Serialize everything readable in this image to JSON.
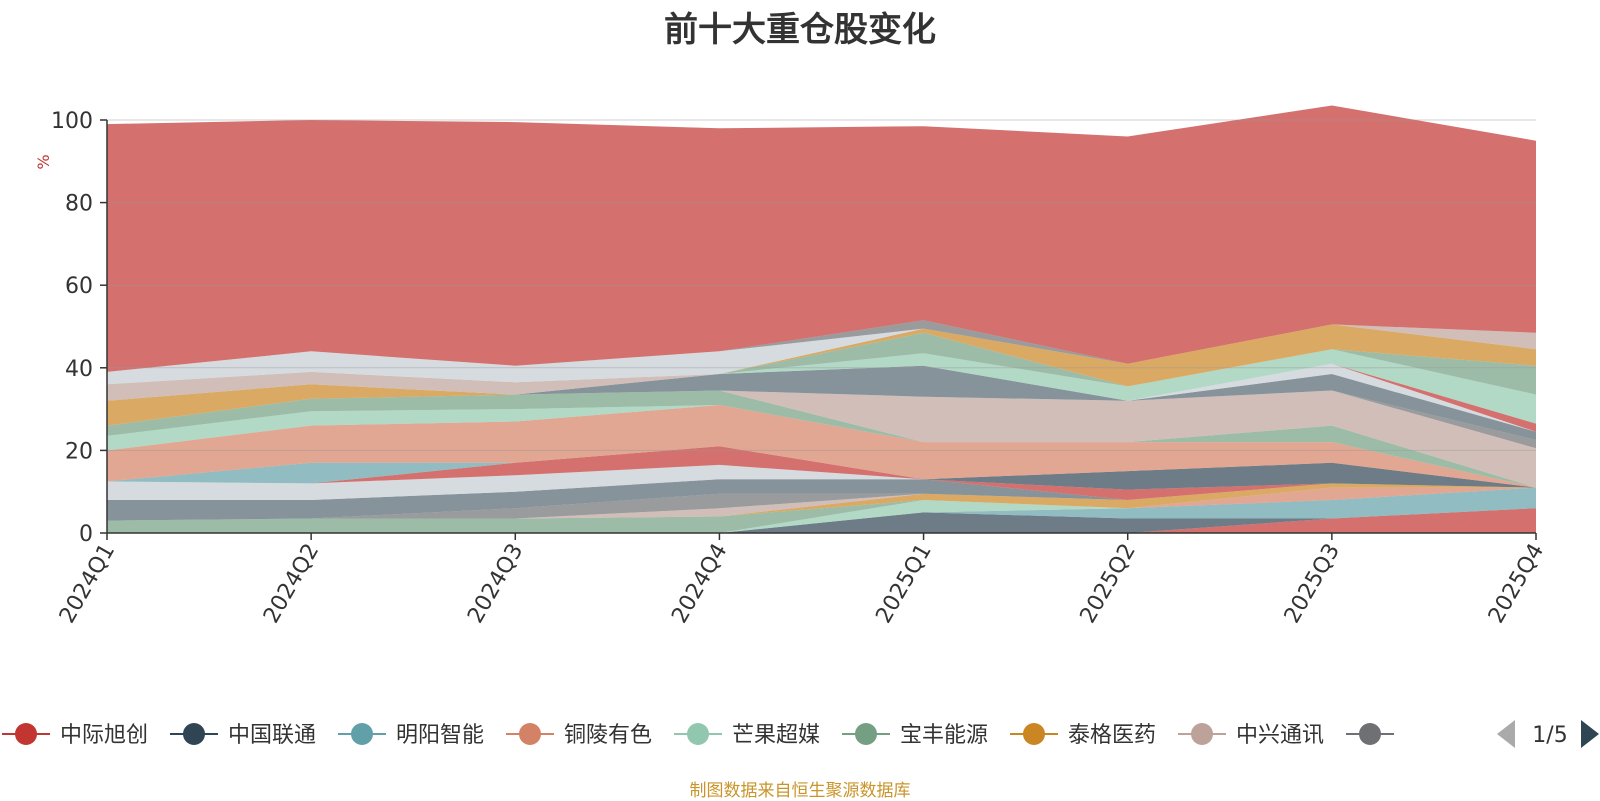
{
  "chart_data": {
    "type": "area",
    "stacked": true,
    "title": "前十大重仓股变化",
    "ylabel": "%",
    "ylim": [
      0,
      100
    ],
    "yticks": [
      0,
      20,
      40,
      60,
      80,
      100
    ],
    "grid": true,
    "x": [
      "2024Q1",
      "2024Q2",
      "2024Q3",
      "2024Q4",
      "2025Q1",
      "2025Q2",
      "2025Q3",
      "2025Q4"
    ],
    "series": [
      {
        "name": "中际旭创",
        "color": "#c23531",
        "values": [
          0,
          0,
          0,
          0,
          0,
          0,
          3.5,
          6
        ]
      },
      {
        "name": "中国联通",
        "color": "#2f4554",
        "values": [
          0,
          0,
          0,
          0,
          5,
          3.5,
          0,
          0
        ]
      },
      {
        "name": "明阳智能",
        "color": "#61a0a8",
        "values": [
          0,
          0,
          0,
          0,
          0,
          2.5,
          4.5,
          5
        ]
      },
      {
        "name": "铜陵有色",
        "color": "#d48265",
        "values": [
          0,
          0,
          0,
          0,
          0,
          0,
          3,
          0
        ]
      },
      {
        "name": "芒果超媒",
        "color": "#91c7ae",
        "values": [
          0,
          0,
          0,
          0,
          3,
          0,
          0,
          0
        ]
      },
      {
        "name": "宝丰能源",
        "color": "#749f83",
        "values": [
          3,
          3.5,
          3.5,
          4,
          0,
          0,
          0,
          0
        ]
      },
      {
        "name": "泰格医药",
        "color": "#ca8622",
        "values": [
          0,
          0,
          0,
          0,
          1.5,
          2,
          1,
          0
        ]
      },
      {
        "name": "中兴通讯",
        "color": "#bda29a",
        "values": [
          0,
          0,
          0,
          2,
          0,
          0,
          0,
          0
        ]
      },
      {
        "name": "",
        "color": "#6e7074",
        "values": [
          0,
          0,
          2.5,
          3.5,
          0,
          0,
          0,
          0
        ]
      },
      {
        "name": "",
        "color": "#546570",
        "values": [
          5,
          4.5,
          4,
          3.5,
          3.5,
          0,
          0,
          0
        ]
      },
      {
        "name": "",
        "color": "#c4ccd3",
        "values": [
          4.5,
          4,
          4,
          3.5,
          0,
          0,
          0,
          0
        ]
      },
      {
        "name": "",
        "color": "#c23531",
        "values": [
          0,
          0,
          3,
          4.5,
          0,
          2.5,
          0,
          0
        ]
      },
      {
        "name": "",
        "color": "#2f4554",
        "values": [
          0,
          0,
          0,
          0,
          0,
          4.5,
          5,
          0
        ]
      },
      {
        "name": "",
        "color": "#61a0a8",
        "values": [
          0,
          5,
          0,
          0,
          0,
          0,
          0,
          0
        ]
      },
      {
        "name": "",
        "color": "#d48265",
        "values": [
          7.5,
          9,
          10,
          10,
          9,
          7,
          5,
          0
        ]
      },
      {
        "name": "",
        "color": "#91c7ae",
        "values": [
          3.5,
          3.5,
          3,
          0,
          0,
          0,
          0,
          0
        ]
      },
      {
        "name": "",
        "color": "#749f83",
        "values": [
          2.5,
          3,
          3.5,
          3.5,
          0,
          0,
          4,
          0
        ]
      },
      {
        "name": "",
        "color": "#ca8622",
        "values": [
          6,
          3.5,
          0,
          0,
          0,
          0,
          0,
          0
        ]
      },
      {
        "name": "",
        "color": "#bda29a",
        "values": [
          0,
          0,
          0,
          0,
          11,
          10,
          8.5,
          9.5
        ]
      },
      {
        "name": "",
        "color": "#6e7074",
        "values": [
          0,
          0,
          0,
          0,
          0,
          0,
          0,
          2
        ]
      },
      {
        "name": "",
        "color": "#546570",
        "values": [
          0,
          0,
          0,
          4,
          7.5,
          0,
          4,
          2
        ]
      },
      {
        "name": "",
        "color": "#c4ccd3",
        "values": [
          0,
          0,
          0,
          0,
          0,
          0,
          2.5,
          0
        ]
      },
      {
        "name": "",
        "color": "#c23531",
        "values": [
          0,
          0,
          0,
          0,
          0,
          0,
          0,
          2
        ]
      },
      {
        "name": "",
        "color": "#91c7ae",
        "values": [
          0,
          0,
          0,
          0,
          3,
          3.5,
          3.5,
          7
        ]
      },
      {
        "name": "",
        "color": "#749f83",
        "values": [
          0,
          0,
          0,
          0,
          5,
          0,
          0,
          7
        ]
      },
      {
        "name": "",
        "color": "#ca8622",
        "values": [
          0,
          0,
          0,
          0,
          1,
          5.5,
          6,
          4
        ]
      },
      {
        "name": "",
        "color": "#bda29a",
        "values": [
          4,
          3,
          3,
          0,
          0,
          0,
          0,
          4
        ]
      },
      {
        "name": "",
        "color": "#c4ccd3",
        "values": [
          3,
          5,
          4,
          5.5,
          0,
          0,
          0,
          0
        ]
      },
      {
        "name": "",
        "color": "#6e7074",
        "values": [
          0,
          0,
          0,
          0,
          2,
          0,
          0,
          0
        ]
      },
      {
        "name": "",
        "color": "#c23531",
        "values": [
          60,
          56,
          59,
          54,
          47,
          55,
          53,
          46.5
        ]
      }
    ]
  },
  "legend": {
    "items": [
      {
        "name": "中际旭创",
        "color": "#c23531"
      },
      {
        "name": "中国联通",
        "color": "#2f4554"
      },
      {
        "name": "明阳智能",
        "color": "#61a0a8"
      },
      {
        "name": "铜陵有色",
        "color": "#d48265"
      },
      {
        "name": "芒果超媒",
        "color": "#91c7ae"
      },
      {
        "name": "宝丰能源",
        "color": "#749f83"
      },
      {
        "name": "泰格医药",
        "color": "#ca8622"
      },
      {
        "name": "中兴通讯",
        "color": "#bda29a"
      },
      {
        "name": "",
        "color": "#6e7074"
      }
    ],
    "page_text": "1/5"
  },
  "footer": "制图数据来自恒生聚源数据库"
}
